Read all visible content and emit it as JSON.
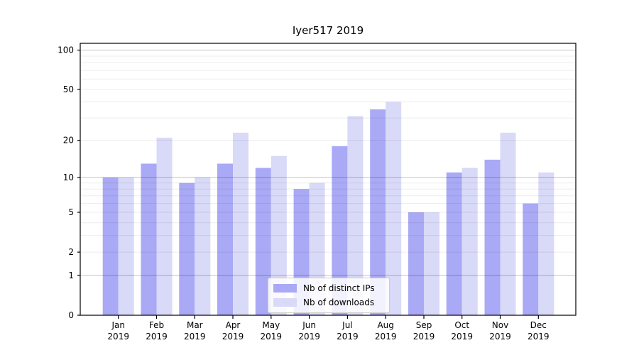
{
  "title": "Iyer517 2019",
  "chart_data": {
    "type": "bar",
    "title": "Iyer517 2019",
    "categories": [
      "Jan 2019",
      "Feb 2019",
      "Mar 2019",
      "Apr 2019",
      "May 2019",
      "Jun 2019",
      "Jul 2019",
      "Aug 2019",
      "Sep 2019",
      "Oct 2019",
      "Nov 2019",
      "Dec 2019"
    ],
    "series": [
      {
        "name": "Nb of distinct IPs",
        "color": "#a9a9f5",
        "values": [
          10,
          13,
          9,
          13,
          12,
          8,
          18,
          35,
          5,
          11,
          14,
          6
        ]
      },
      {
        "name": "Nb of downloads",
        "color": "#d9d9f8",
        "values": [
          10,
          21,
          10,
          23,
          15,
          9,
          31,
          40,
          5,
          12,
          23,
          11
        ]
      }
    ],
    "xlabel": "",
    "ylabel": "",
    "y_axis": {
      "scale": "log1p",
      "tick_labels": [
        100,
        50,
        20,
        10,
        5,
        2,
        1,
        0
      ],
      "range": [
        0,
        112
      ],
      "major_gridlines": [
        1,
        10,
        100
      ],
      "minor_gridlines": [
        2,
        3,
        4,
        5,
        6,
        7,
        8,
        9,
        20,
        30,
        40,
        50,
        60,
        70,
        80,
        90
      ]
    },
    "grid": true,
    "legend_position": "lower center"
  }
}
